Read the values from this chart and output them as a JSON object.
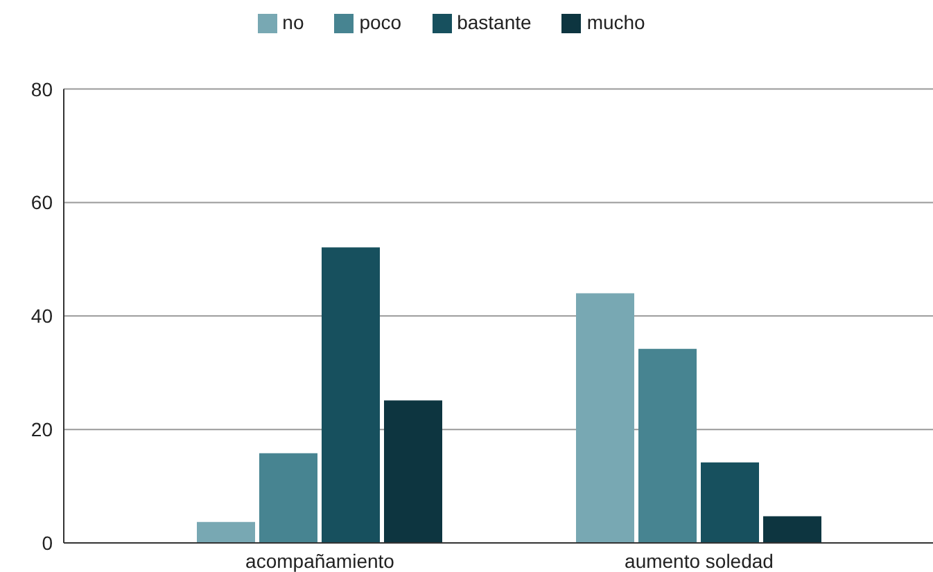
{
  "chart_data": {
    "type": "bar",
    "categories": [
      "acompañamiento",
      "aumento soledad"
    ],
    "series": [
      {
        "name": "no",
        "color": "#78a8b3",
        "values": [
          3.7,
          44
        ]
      },
      {
        "name": "poco",
        "color": "#478491",
        "values": [
          15.8,
          34.2
        ]
      },
      {
        "name": "bastante",
        "color": "#17505e",
        "values": [
          52.1,
          14.2
        ]
      },
      {
        "name": "mucho",
        "color": "#0d3540",
        "values": [
          25.1,
          4.7
        ]
      }
    ],
    "ylim": [
      0,
      80
    ],
    "yticks": [
      0,
      20,
      40,
      60,
      80
    ],
    "grid": "y",
    "legend": "top"
  }
}
